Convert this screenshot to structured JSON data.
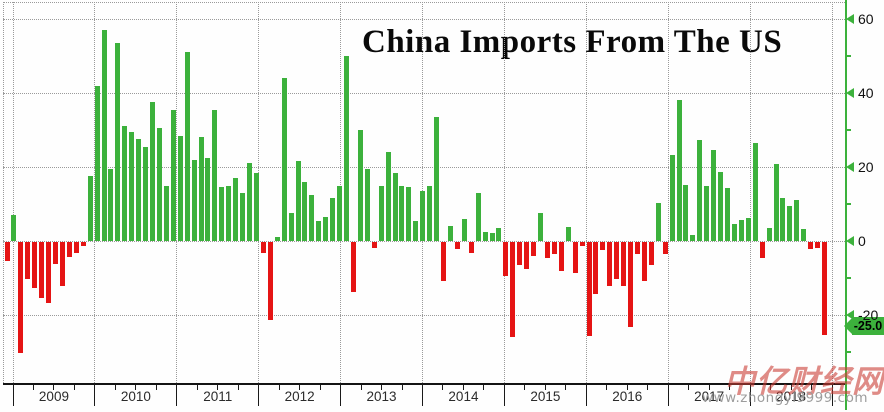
{
  "title": "China Imports From The US",
  "y_axis": {
    "major_ticks": [
      60,
      40,
      20,
      0,
      -20
    ],
    "minor_ticks": [
      50,
      30,
      10,
      -10,
      -30
    ],
    "last_value_label": "-25.0"
  },
  "x_axis": {
    "years": [
      "2009",
      "2010",
      "2011",
      "2012",
      "2013",
      "2014",
      "2015",
      "2016",
      "2017",
      "2018"
    ]
  },
  "watermark": {
    "brand": "中亿财经网",
    "url": "www.zhongyi9999.com"
  },
  "colors": {
    "positive": "#3cb13c",
    "negative": "#e51414",
    "axis_green": "#3cb13c",
    "grid": "#9a9a9a",
    "axis_black": "#141414",
    "badge_bg": "#3cb13c",
    "badge_text": "#000000",
    "watermark_red": "rgba(201,62,54,0.6)",
    "watermark_gray": "#9c9c9c"
  },
  "chart_data": {
    "type": "bar",
    "title": "China Imports From The US",
    "frequency": "monthly",
    "x_years": [
      2009,
      2010,
      2011,
      2012,
      2013,
      2014,
      2015,
      2016,
      2017,
      2018
    ],
    "ylim": [
      -38,
      64
    ],
    "y_major_gridlines": [
      60,
      40,
      20,
      0,
      -20
    ],
    "grid": true,
    "legend": false,
    "last_value": -25.0,
    "values": [
      -5,
      7,
      -30,
      -10,
      -12.5,
      -15,
      -16.5,
      -6,
      -12,
      -4,
      -3,
      -1,
      17.5,
      42,
      57,
      19.5,
      53.5,
      31,
      29.5,
      27.5,
      25.5,
      37.5,
      30.5,
      15,
      35.5,
      28.5,
      51,
      22,
      28,
      22.5,
      35.5,
      14.5,
      15,
      17,
      13,
      21,
      18.5,
      -3,
      -21,
      1,
      44,
      7.5,
      21.5,
      16,
      12.5,
      5.5,
      6.5,
      11.5,
      15,
      50,
      -13.5,
      30,
      19.5,
      -1.5,
      15,
      24,
      18.5,
      15,
      14.5,
      5.5,
      13.5,
      15,
      33.5,
      -10.5,
      4,
      -2,
      6,
      -3,
      13,
      2.5,
      2.2,
      3.4,
      -9.2,
      -25.7,
      -6.2,
      -7.2,
      -3.8,
      7.5,
      -4.2,
      -3.2,
      -7.8,
      3.9,
      -8.3,
      -1,
      -25.5,
      -14,
      -2.2,
      -12,
      -10,
      -11.9,
      -23,
      -3.2,
      -10.5,
      -6.3,
      10.2,
      -3.3,
      23.3,
      38,
      15.2,
      1.7,
      27.2,
      15,
      24.6,
      18.6,
      14.4,
      4.6,
      5.7,
      6.2,
      26.6,
      -4.2,
      3.4,
      20.8,
      11.5,
      9.5,
      11.1,
      3.2,
      -1.8,
      -1.5,
      -25.0
    ]
  }
}
